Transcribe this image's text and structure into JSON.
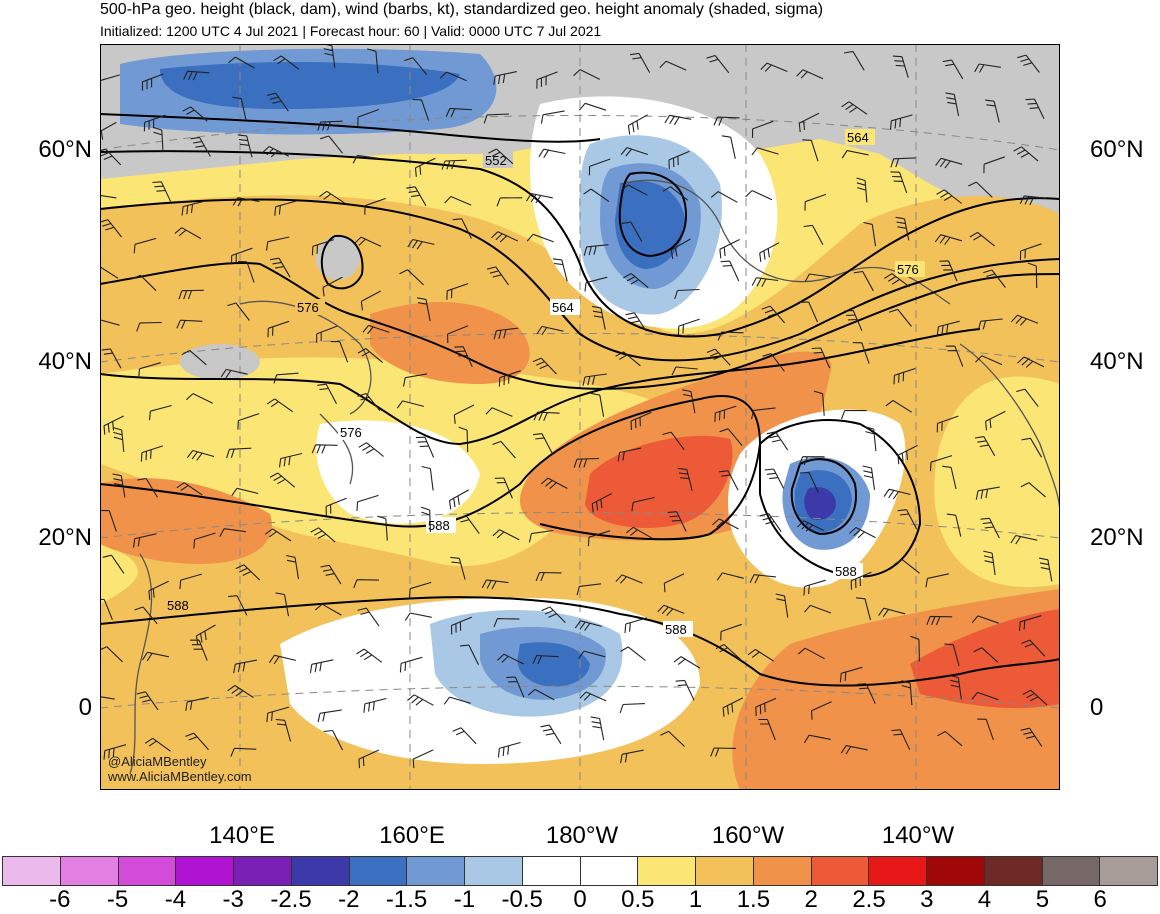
{
  "header": {
    "title": "500-hPa geo. height (black, dam), wind (barbs, kt), standardized geo. height anomaly (shaded, sigma)",
    "subtitle": "Initialized: 1200 UTC 4 Jul 2021 | Forecast hour: 60 | Valid: 0000 UTC 7 Jul 2021"
  },
  "map": {
    "lat_labels": [
      "60°N",
      "40°N",
      "20°N",
      "0"
    ],
    "lon_labels": [
      "140°E",
      "160°E",
      "180°W",
      "160°W",
      "140°W"
    ],
    "contour_labels": [
      "552",
      "564",
      "564",
      "576",
      "576",
      "576",
      "588",
      "588",
      "588",
      "588"
    ],
    "credit": [
      "@AliciaMBentley",
      "www.AliciaMBentley.com"
    ]
  },
  "colorbar": {
    "colors": [
      "#ebb9eb",
      "#e37fe3",
      "#d34bd9",
      "#b014d2",
      "#7b20b4",
      "#3b3aa8",
      "#3b6fbf",
      "#7199d3",
      "#a8c8e6",
      "#ffffff",
      "#ffffff",
      "#fbe574",
      "#f3c15a",
      "#f1924a",
      "#ec5a37",
      "#e81818",
      "#a00707",
      "#6e2a26",
      "#766866",
      "#a89c98"
    ],
    "labels": [
      "-6",
      "-5",
      "-4",
      "-3",
      "-2.5",
      "-2",
      "-1.5",
      "-1",
      "-0.5",
      "0",
      "0.5",
      "1",
      "1.5",
      "2",
      "2.5",
      "3",
      "4",
      "5",
      "6"
    ]
  },
  "colors": {
    "grey": "#c8c8c8",
    "yellow": "#fbe574",
    "lt_orange": "#f3c15a",
    "orange": "#f1924a",
    "red_orange": "#ec5a37",
    "lt_blue": "#a8c8e6",
    "mid_blue": "#7199d3",
    "blue": "#3b6fbf",
    "dark_blue": "#3b3aa8"
  }
}
